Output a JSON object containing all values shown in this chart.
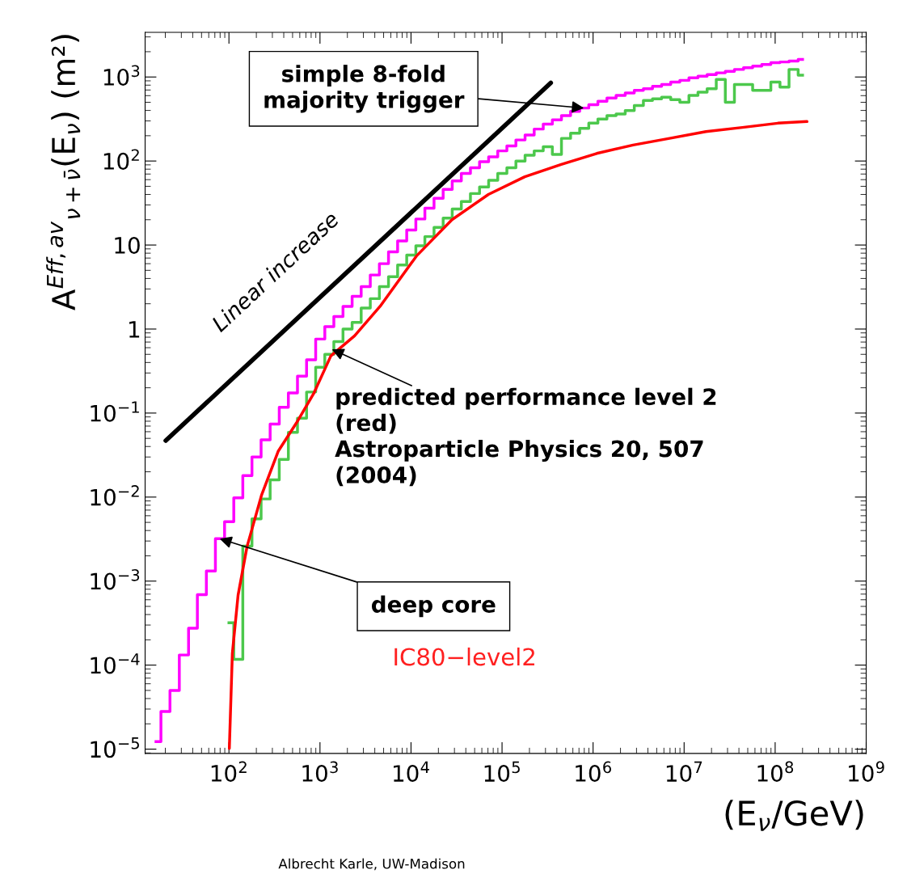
{
  "chart_data": {
    "type": "step",
    "xlabel": "(E$_{ν}$/GeV)",
    "ylabel": "A$^{Eff,av}$$_{ν+ν̄}$(E$_{ν}$) (m²)",
    "log": "xy",
    "xlim": [
      12,
      1000000000.0
    ],
    "ylim": [
      8.9e-06,
      3400
    ],
    "xticks": [
      {
        "value": 100,
        "label": "10$^{2}$"
      },
      {
        "value": 1000,
        "label": "10$^{3}$"
      },
      {
        "value": 10000,
        "label": "10$^{4}$"
      },
      {
        "value": 100000,
        "label": "10$^{5}$"
      },
      {
        "value": 1000000,
        "label": "10$^{6}$"
      },
      {
        "value": 10000000,
        "label": "10$^{7}$"
      },
      {
        "value": 100000000,
        "label": "10$^{8}$"
      },
      {
        "value": 1000000000,
        "label": "10$^{9}$"
      }
    ],
    "yticks": [
      {
        "value": 1e-05,
        "label": "10$^{−5}$"
      },
      {
        "value": 0.0001,
        "label": "10$^{−4}$"
      },
      {
        "value": 0.001,
        "label": "10$^{−3}$"
      },
      {
        "value": 0.01,
        "label": "10$^{−2}$"
      },
      {
        "value": 0.1,
        "label": "10$^{−1}$"
      },
      1,
      10,
      {
        "value": 100,
        "label": "10$^{2}$"
      },
      {
        "value": 1000,
        "label": "10$^{3}$"
      }
    ],
    "series": [
      {
        "color": "#ff00ff",
        "x": [
          15.8,
          20,
          25,
          32,
          40,
          50,
          63,
          79,
          100,
          126,
          158,
          200,
          251,
          316,
          398,
          501,
          631,
          794,
          1000,
          1260,
          1580,
          2000,
          2510,
          3160,
          3980,
          5010,
          6310,
          7940,
          10000.0,
          12600.0,
          15800.0,
          20000.0,
          25100.0,
          31600.0,
          39800.0,
          50100.0,
          63100.0,
          79400.0,
          100000.0,
          126000.0,
          158000.0,
          200000.0,
          251000.0,
          316000.0,
          398000.0,
          501000.0,
          631000.0,
          794000.0,
          1000000.0,
          1260000.0,
          1580000.0,
          2000000.0,
          2510000.0,
          3160000.0,
          3980000.0,
          5010000.0,
          6310000.0,
          7940000.0,
          10000000.0,
          12600000.0,
          15800000.0,
          20000000.0,
          25100000.0,
          31600000.0,
          39800000.0,
          50100000.0,
          63100000.0,
          79400000.0,
          100000000.0,
          126000000.0,
          158000000.0,
          200000000.0
        ],
        "values": [
          1.23e-05,
          2.8e-05,
          5e-05,
          0.000132,
          0.000275,
          0.00069,
          0.00132,
          0.0032,
          0.0051,
          0.0098,
          0.018,
          0.03,
          0.048,
          0.074,
          0.117,
          0.174,
          0.275,
          0.43,
          0.76,
          1.07,
          1.41,
          1.86,
          2.45,
          3.2,
          4.4,
          6.0,
          8.3,
          11.2,
          15.1,
          20.4,
          27.5,
          36,
          46,
          58,
          71,
          83,
          98,
          112,
          132,
          151,
          178,
          204,
          240,
          275,
          309,
          347,
          389,
          427,
          468,
          513,
          562,
          603,
          646,
          692,
          724,
          776,
          813,
          871,
          912,
          977,
          1020,
          1070,
          1120,
          1170,
          1230,
          1290,
          1350,
          1410,
          1480,
          1510,
          1550,
          1620
        ]
      },
      {
        "color": "#4cc84c",
        "x": [
          100,
          126,
          158,
          200,
          251,
          316,
          398,
          501,
          631,
          794,
          1000,
          1260,
          1580,
          2000,
          2510,
          3160,
          3980,
          5010,
          6310,
          7940,
          10000.0,
          12600.0,
          15800.0,
          20000.0,
          25100.0,
          31600.0,
          39800.0,
          50100.0,
          63100.0,
          79400.0,
          100000.0,
          126000.0,
          158000.0,
          200000.0,
          251000.0,
          316000.0,
          398000.0,
          501000.0,
          631000.0,
          794000.0,
          1000000.0,
          1260000.0,
          1580000.0,
          2000000.0,
          2510000.0,
          3160000.0,
          3980000.0,
          5010000.0,
          6310000.0,
          7940000.0,
          10000000.0,
          12600000.0,
          15800000.0,
          20000000.0,
          25100000.0,
          31600000.0,
          39800000.0,
          50100000.0,
          63100000.0,
          79400000.0,
          100000000.0,
          126000000.0,
          158000000.0,
          200000000.0
        ],
        "values": [
          0.00032,
          0.000117,
          0.0026,
          0.0055,
          0.0095,
          0.016,
          0.028,
          0.059,
          0.087,
          0.178,
          0.35,
          0.5,
          0.71,
          1.0,
          1.2,
          1.78,
          2.3,
          3.2,
          4.2,
          5.8,
          7.6,
          9.8,
          12.6,
          16.2,
          20.9,
          26.9,
          33,
          41,
          49,
          59,
          71,
          83,
          100,
          117,
          132,
          148,
          120,
          186,
          214,
          245,
          282,
          316,
          347,
          363,
          398,
          457,
          525,
          550,
          575,
          537,
          501,
          603,
          661,
          724,
          933,
          501,
          813,
          813,
          692,
          692,
          871,
          759,
          1230,
          1050
        ]
      },
      {
        "type": "line",
        "color": "#ff0000",
        "x": [
          101,
          109,
          126,
          158,
          229,
          347,
          550,
          851,
          1318,
          2399,
          4571,
          11480,
          28180,
          70800,
          177800,
          446700,
          1096000.0,
          2754000.0,
          6918000.0,
          17380000.0,
          43650000.0,
          107200000.0,
          223900000.0
        ],
        "values": [
          1.02e-05,
          0.000138,
          0.00068,
          0.00257,
          0.0107,
          0.035,
          0.076,
          0.17,
          0.48,
          0.83,
          1.86,
          7.4,
          20,
          40,
          65,
          91,
          123,
          155,
          186,
          224,
          251,
          282,
          295
        ]
      },
      {
        "type": "line",
        "name": "Linear increase",
        "color": "#000000",
        "x": [
          20.2,
          343000.0
        ],
        "values": [
          0.047,
          851
        ]
      }
    ],
    "annotations": [
      {
        "text": "simple 8-fold\nmajority trigger",
        "x": 794000.0,
        "y": 427
      },
      {
        "text": "predicted performance level 2\n(red)\nAstroparticle Physics 20, 507\n(2004)",
        "x": 1350,
        "y": 0.575
      },
      {
        "text": "deep core",
        "x": 79,
        "y": 0.0032
      },
      "IC80−level2",
      "Albrecht Karle, UW-Madison"
    ]
  }
}
